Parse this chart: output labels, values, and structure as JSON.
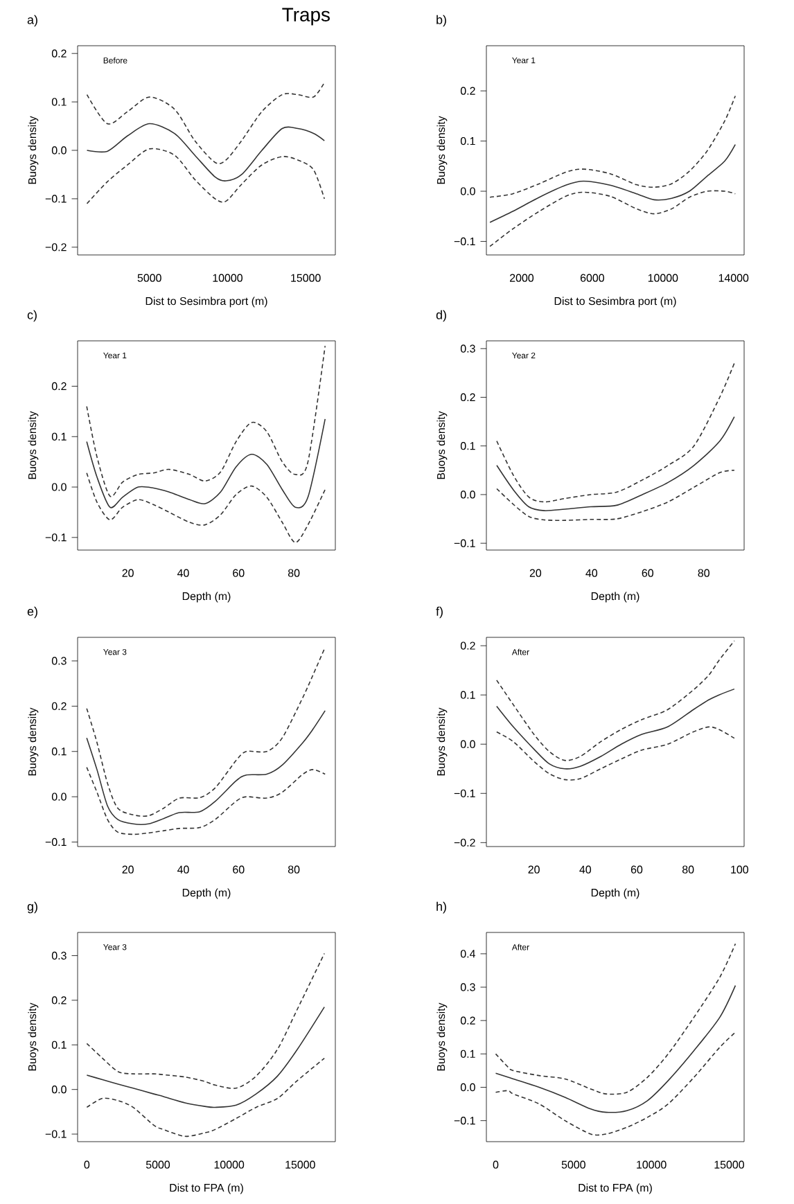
{
  "chart_data": [
    {
      "type": "line",
      "title": "Traps",
      "subtitle": "Before",
      "annotations": [
        "a)"
      ],
      "xlabel": "Dist to Sesimbra port (m)",
      "ylabel": "Buoys density",
      "x": [
        1000,
        2300,
        3600,
        5000,
        6600,
        7900,
        9200,
        9900,
        10900,
        12200,
        13500,
        14500,
        15500,
        16200
      ],
      "series": [
        {
          "color": "#333333",
          "line_style": "solid",
          "values": [
            0.0,
            -0.002,
            0.03,
            0.055,
            0.035,
            -0.01,
            -0.055,
            -0.063,
            -0.05,
            0.0,
            0.045,
            0.045,
            0.035,
            0.02
          ]
        },
        {
          "color": "#333333",
          "line_style": "dashed",
          "values": [
            0.115,
            0.055,
            0.08,
            0.11,
            0.085,
            0.02,
            -0.025,
            -0.02,
            0.02,
            0.08,
            0.115,
            0.115,
            0.11,
            0.14
          ]
        },
        {
          "color": "#333333",
          "line_style": "dashed",
          "values": [
            -0.11,
            -0.065,
            -0.03,
            0.003,
            -0.01,
            -0.06,
            -0.1,
            -0.105,
            -0.07,
            -0.03,
            -0.013,
            -0.02,
            -0.04,
            -0.1
          ]
        }
      ],
      "xlim": [
        400,
        16900
      ],
      "ylim": [
        -0.216,
        0.216
      ],
      "xticks": [
        5000,
        10000,
        15000
      ],
      "yticks": [
        {
          "value": -0.2,
          "label": "−0.2"
        },
        {
          "value": -0.1,
          "label": "−0.1"
        },
        {
          "value": 0.0,
          "label": "0.0"
        },
        {
          "value": 0.1,
          "label": "0.1"
        },
        {
          "value": 0.2,
          "label": "0.2"
        }
      ]
    },
    {
      "type": "line",
      "subtitle": "Year 1",
      "annotations": [
        "b)"
      ],
      "xlabel": "Dist to Sesimbra port (m)",
      "ylabel": "Buoys density",
      "x": [
        200,
        1500,
        3000,
        4500,
        5500,
        7000,
        8500,
        9500,
        10500,
        11500,
        12500,
        13500,
        14100
      ],
      "series": [
        {
          "color": "#333333",
          "line_style": "solid",
          "values": [
            -0.062,
            -0.04,
            -0.012,
            0.012,
            0.02,
            0.012,
            -0.005,
            -0.017,
            -0.014,
            0.0,
            0.03,
            0.06,
            0.093
          ]
        },
        {
          "color": "#333333",
          "line_style": "dashed",
          "values": [
            -0.012,
            -0.005,
            0.015,
            0.038,
            0.044,
            0.035,
            0.013,
            0.008,
            0.015,
            0.04,
            0.08,
            0.14,
            0.19
          ]
        },
        {
          "color": "#333333",
          "line_style": "dashed",
          "values": [
            -0.11,
            -0.075,
            -0.04,
            -0.01,
            -0.002,
            -0.01,
            -0.035,
            -0.045,
            -0.035,
            -0.012,
            0.0,
            0.0,
            -0.005
          ]
        }
      ],
      "xlim": [
        0,
        14600
      ],
      "ylim": [
        -0.127,
        0.29
      ],
      "xticks": [
        2000,
        6000,
        10000,
        14000
      ],
      "yticks": [
        {
          "value": -0.1,
          "label": "−0.1"
        },
        {
          "value": 0.0,
          "label": "0.0"
        },
        {
          "value": 0.1,
          "label": "0.1"
        },
        {
          "value": 0.2,
          "label": "0.2"
        }
      ]
    },
    {
      "type": "line",
      "subtitle": "Year 1",
      "annotations": [
        "c)"
      ],
      "xlabel": "Depth (m)",
      "ylabel": "Buoys density",
      "x": [
        5.1,
        8.8,
        13.5,
        18.1,
        23.7,
        29.3,
        34.9,
        42.3,
        47.9,
        53.5,
        59.1,
        64.7,
        70.2,
        75.8,
        80.5,
        85.1,
        91.3
      ],
      "series": [
        {
          "color": "#333333",
          "line_style": "solid",
          "values": [
            0.09,
            0.02,
            -0.04,
            -0.02,
            0.0,
            -0.002,
            -0.01,
            -0.025,
            -0.033,
            -0.01,
            0.04,
            0.065,
            0.045,
            -0.005,
            -0.04,
            -0.02,
            0.135
          ]
        },
        {
          "color": "#333333",
          "line_style": "dashed",
          "values": [
            0.16,
            0.06,
            -0.018,
            0.01,
            0.025,
            0.028,
            0.035,
            0.025,
            0.012,
            0.03,
            0.09,
            0.128,
            0.11,
            0.05,
            0.025,
            0.05,
            0.28
          ]
        },
        {
          "color": "#333333",
          "line_style": "dashed",
          "values": [
            0.028,
            -0.03,
            -0.065,
            -0.04,
            -0.025,
            -0.035,
            -0.05,
            -0.07,
            -0.075,
            -0.055,
            -0.015,
            0.002,
            -0.02,
            -0.07,
            -0.11,
            -0.075,
            -0.005
          ]
        }
      ],
      "xlim": [
        1.8,
        95
      ],
      "ylim": [
        -0.125,
        0.29
      ],
      "xticks": [
        20,
        40,
        60,
        80
      ],
      "yticks": [
        {
          "value": -0.1,
          "label": "−0.1"
        },
        {
          "value": 0.0,
          "label": "0.0"
        },
        {
          "value": 0.1,
          "label": "0.1"
        },
        {
          "value": 0.2,
          "label": "0.2"
        }
      ]
    },
    {
      "type": "line",
      "subtitle": "Year 2",
      "annotations": [
        "d)"
      ],
      "xlabel": "Depth (m)",
      "ylabel": "Buoys density",
      "x": [
        6.2,
        12.1,
        17.6,
        23.1,
        30.5,
        39.7,
        48.9,
        58.1,
        67.3,
        76.5,
        85.7,
        90.9
      ],
      "series": [
        {
          "color": "#333333",
          "line_style": "solid",
          "values": [
            0.06,
            0.01,
            -0.025,
            -0.033,
            -0.03,
            -0.025,
            -0.022,
            0.0,
            0.025,
            0.06,
            0.11,
            0.16
          ]
        },
        {
          "color": "#333333",
          "line_style": "dashed",
          "values": [
            0.11,
            0.04,
            -0.005,
            -0.015,
            -0.008,
            0.0,
            0.005,
            0.03,
            0.06,
            0.1,
            0.2,
            0.27
          ]
        },
        {
          "color": "#333333",
          "line_style": "dashed",
          "values": [
            0.012,
            -0.02,
            -0.045,
            -0.052,
            -0.053,
            -0.051,
            -0.05,
            -0.035,
            -0.015,
            0.015,
            0.045,
            0.05
          ]
        }
      ],
      "xlim": [
        2.5,
        94.4
      ],
      "ylim": [
        -0.114,
        0.316
      ],
      "xticks": [
        20,
        40,
        60,
        80
      ],
      "yticks": [
        {
          "value": -0.1,
          "label": "−0.1"
        },
        {
          "value": 0.0,
          "label": "0.0"
        },
        {
          "value": 0.1,
          "label": "0.1"
        },
        {
          "value": 0.2,
          "label": "0.2"
        },
        {
          "value": 0.3,
          "label": "0.3"
        }
      ]
    },
    {
      "type": "line",
      "subtitle": "Year 3",
      "annotations": [
        "e)"
      ],
      "xlabel": "Depth (m)",
      "ylabel": "Buoys density",
      "x": [
        5.1,
        8.8,
        12.6,
        16.3,
        21.9,
        27.4,
        33,
        38.6,
        46,
        51.6,
        59.1,
        62.8,
        70.2,
        75.8,
        83.3,
        87,
        91.3
      ],
      "series": [
        {
          "color": "#333333",
          "line_style": "solid",
          "values": [
            0.13,
            0.06,
            -0.02,
            -0.05,
            -0.06,
            -0.06,
            -0.048,
            -0.035,
            -0.033,
            -0.01,
            0.035,
            0.048,
            0.05,
            0.07,
            0.12,
            0.15,
            0.19
          ]
        },
        {
          "color": "#333333",
          "line_style": "dashed",
          "values": [
            0.195,
            0.12,
            0.03,
            -0.025,
            -0.04,
            -0.042,
            -0.025,
            -0.003,
            -0.002,
            0.02,
            0.08,
            0.1,
            0.1,
            0.13,
            0.22,
            0.27,
            0.33
          ]
        },
        {
          "color": "#333333",
          "line_style": "dashed",
          "values": [
            0.065,
            0.01,
            -0.05,
            -0.078,
            -0.083,
            -0.08,
            -0.075,
            -0.07,
            -0.068,
            -0.05,
            -0.01,
            0.0,
            -0.003,
            0.01,
            0.05,
            0.06,
            0.05
          ]
        }
      ],
      "xlim": [
        1.8,
        95
      ],
      "ylim": [
        -0.11,
        0.352
      ],
      "xticks": [
        20,
        40,
        60,
        80
      ],
      "yticks": [
        {
          "value": -0.1,
          "label": "−0.1"
        },
        {
          "value": 0.0,
          "label": "0.0"
        },
        {
          "value": 0.1,
          "label": "0.1"
        },
        {
          "value": 0.2,
          "label": "0.2"
        },
        {
          "value": 0.3,
          "label": "0.3"
        }
      ]
    },
    {
      "type": "line",
      "subtitle": "After",
      "annotations": [
        "f)"
      ],
      "xlabel": "Depth (m)",
      "ylabel": "Buoys density",
      "x": [
        5.5,
        12,
        20,
        26,
        32,
        38,
        46,
        54,
        62,
        72,
        82,
        88,
        92,
        98
      ],
      "series": [
        {
          "color": "#333333",
          "line_style": "solid",
          "values": [
            0.077,
            0.035,
            -0.01,
            -0.04,
            -0.05,
            -0.045,
            -0.025,
            0.0,
            0.02,
            0.035,
            0.07,
            0.09,
            0.1,
            0.112
          ]
        },
        {
          "color": "#333333",
          "line_style": "dashed",
          "values": [
            0.13,
            0.08,
            0.02,
            -0.015,
            -0.033,
            -0.025,
            0.005,
            0.03,
            0.05,
            0.07,
            0.11,
            0.14,
            0.17,
            0.21
          ]
        },
        {
          "color": "#333333",
          "line_style": "dashed",
          "values": [
            0.025,
            0.005,
            -0.035,
            -0.06,
            -0.072,
            -0.07,
            -0.05,
            -0.03,
            -0.012,
            0.0,
            0.025,
            0.035,
            0.03,
            0.012
          ]
        }
      ],
      "xlim": [
        1.5,
        101.8
      ],
      "ylim": [
        -0.208,
        0.217
      ],
      "xticks": [
        20,
        40,
        60,
        80,
        100
      ],
      "yticks": [
        {
          "value": -0.2,
          "label": "−0.2"
        },
        {
          "value": -0.1,
          "label": "−0.1"
        },
        {
          "value": 0.0,
          "label": "0.0"
        },
        {
          "value": 0.1,
          "label": "0.1"
        },
        {
          "value": 0.2,
          "label": "0.2"
        }
      ]
    },
    {
      "type": "line",
      "subtitle": "Year 3",
      "annotations": [
        "g)"
      ],
      "xlabel": "Dist to FPA (m)",
      "ylabel": "Buoys density",
      "x": [
        0,
        1100,
        2200,
        3250,
        4700,
        5400,
        6900,
        8300,
        9000,
        10500,
        11900,
        13400,
        14800,
        16700
      ],
      "series": [
        {
          "color": "#333333",
          "line_style": "solid",
          "values": [
            0.032,
            0.022,
            0.012,
            0.003,
            -0.01,
            -0.016,
            -0.03,
            -0.038,
            -0.04,
            -0.035,
            -0.01,
            0.03,
            0.09,
            0.185
          ]
        },
        {
          "color": "#333333",
          "line_style": "dashed",
          "values": [
            0.103,
            0.07,
            0.04,
            0.035,
            0.035,
            0.033,
            0.028,
            0.018,
            0.01,
            0.003,
            0.03,
            0.09,
            0.18,
            0.305
          ]
        },
        {
          "color": "#333333",
          "line_style": "dashed",
          "values": [
            -0.04,
            -0.02,
            -0.025,
            -0.04,
            -0.08,
            -0.09,
            -0.105,
            -0.097,
            -0.09,
            -0.065,
            -0.04,
            -0.02,
            0.02,
            0.07
          ]
        }
      ],
      "xlim": [
        -650,
        17470
      ],
      "ylim": [
        -0.117,
        0.352
      ],
      "xticks": [
        0,
        5000,
        10000,
        15000
      ],
      "yticks": [
        {
          "value": -0.1,
          "label": "−0.1"
        },
        {
          "value": 0.0,
          "label": "0.0"
        },
        {
          "value": 0.1,
          "label": "0.1"
        },
        {
          "value": 0.2,
          "label": "0.2"
        },
        {
          "value": 0.3,
          "label": "0.3"
        }
      ]
    },
    {
      "type": "line",
      "subtitle": "After",
      "annotations": [
        "h)"
      ],
      "xlabel": "Dist to FPA (m)",
      "ylabel": "Buoys density",
      "x": [
        0,
        800,
        1130,
        2790,
        4450,
        6100,
        7100,
        8430,
        9750,
        11080,
        12740,
        14400,
        15400
      ],
      "series": [
        {
          "color": "#333333",
          "line_style": "solid",
          "values": [
            0.042,
            0.03,
            0.025,
            0.0,
            -0.03,
            -0.065,
            -0.075,
            -0.07,
            -0.04,
            0.02,
            0.11,
            0.21,
            0.305
          ]
        },
        {
          "color": "#333333",
          "line_style": "dashed",
          "values": [
            0.1,
            0.06,
            0.05,
            0.035,
            0.025,
            -0.005,
            -0.02,
            -0.015,
            0.03,
            0.1,
            0.21,
            0.33,
            0.43
          ]
        },
        {
          "color": "#333333",
          "line_style": "dashed",
          "values": [
            -0.015,
            -0.01,
            -0.02,
            -0.05,
            -0.1,
            -0.14,
            -0.14,
            -0.12,
            -0.09,
            -0.05,
            0.03,
            0.12,
            0.165
          ]
        }
      ],
      "xlim": [
        -600,
        15960
      ],
      "ylim": [
        -0.163,
        0.464
      ],
      "xticks": [
        0,
        5000,
        10000,
        15000
      ],
      "yticks": [
        {
          "value": -0.1,
          "label": "−0.1"
        },
        {
          "value": 0.0,
          "label": "0.0"
        },
        {
          "value": 0.1,
          "label": "0.1"
        },
        {
          "value": 0.2,
          "label": "0.2"
        },
        {
          "value": 0.3,
          "label": "0.3"
        },
        {
          "value": 0.4,
          "label": "0.4"
        }
      ]
    }
  ]
}
